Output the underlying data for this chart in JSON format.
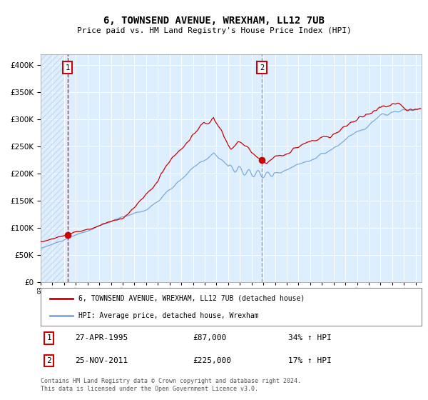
{
  "title1": "6, TOWNSEND AVENUE, WREXHAM, LL12 7UB",
  "title2": "Price paid vs. HM Land Registry's House Price Index (HPI)",
  "legend_line1": "6, TOWNSEND AVENUE, WREXHAM, LL12 7UB (detached house)",
  "legend_line2": "HPI: Average price, detached house, Wrexham",
  "sale1_date": "27-APR-1995",
  "sale1_price": 87000,
  "sale1_label": "34% ↑ HPI",
  "sale2_date": "25-NOV-2011",
  "sale2_price": 225000,
  "sale2_label": "17% ↑ HPI",
  "footer": "Contains HM Land Registry data © Crown copyright and database right 2024.\nThis data is licensed under the Open Government Licence v3.0.",
  "red_color": "#cc0000",
  "blue_color": "#7aaadd",
  "bg_color": "#ddeeff",
  "hatch_color": "#c0cfdf",
  "sale1_x": 1995.29,
  "sale2_x": 2011.88,
  "ylim": [
    0,
    420000
  ],
  "yticks": [
    0,
    50000,
    100000,
    150000,
    200000,
    250000,
    300000,
    350000,
    400000
  ],
  "xlim_start": 1993.0,
  "xlim_end": 2025.5,
  "hatch_end": 1995.0
}
